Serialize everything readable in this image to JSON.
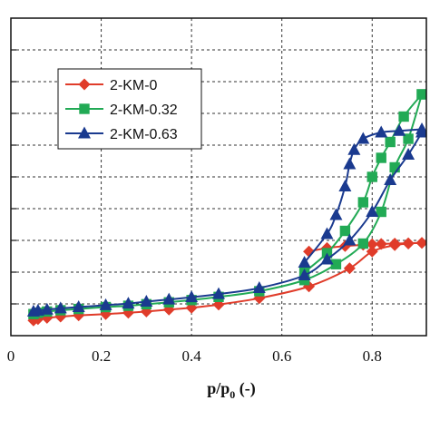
{
  "chart_data": {
    "type": "line",
    "xlabel_main": "p/p",
    "xlabel_sub": "0",
    "xlabel_tail": " (-)",
    "xlim": [
      0,
      0.92
    ],
    "ylim": [
      0,
      1
    ],
    "x_ticks": [
      0,
      0.2,
      0.4,
      0.6,
      0.8
    ],
    "x_tick_labels": [
      "0",
      "0.2",
      "0.4",
      "0.6",
      "0.8"
    ],
    "y_grid": [
      0.1,
      0.2,
      0.3,
      0.4,
      0.5,
      0.6,
      0.7,
      0.8,
      0.9
    ],
    "grid": true,
    "legend_position": "upper-left",
    "series": [
      {
        "name": "2-KM-0",
        "color": "#e03c2a",
        "marker": "diamond",
        "adsorption": {
          "x": [
            0.05,
            0.06,
            0.08,
            0.11,
            0.15,
            0.21,
            0.26,
            0.3,
            0.35,
            0.4,
            0.46,
            0.55,
            0.66,
            0.75,
            0.8,
            0.85,
            0.88,
            0.91
          ],
          "y": [
            0.048,
            0.052,
            0.056,
            0.06,
            0.064,
            0.068,
            0.072,
            0.076,
            0.082,
            0.088,
            0.098,
            0.118,
            0.155,
            0.212,
            0.265,
            0.285,
            0.29,
            0.292
          ]
        },
        "desorption": {
          "x": [
            0.91,
            0.88,
            0.85,
            0.82,
            0.8,
            0.78,
            0.74,
            0.7,
            0.66
          ],
          "y": [
            0.292,
            0.291,
            0.29,
            0.289,
            0.288,
            0.286,
            0.282,
            0.276,
            0.265
          ]
        }
      },
      {
        "name": "2-KM-0.32",
        "color": "#22aa55",
        "marker": "square",
        "adsorption": {
          "x": [
            0.05,
            0.06,
            0.08,
            0.11,
            0.15,
            0.21,
            0.26,
            0.3,
            0.35,
            0.4,
            0.46,
            0.55,
            0.65,
            0.72,
            0.78,
            0.82,
            0.85,
            0.88,
            0.91
          ],
          "y": [
            0.068,
            0.072,
            0.076,
            0.08,
            0.084,
            0.09,
            0.094,
            0.099,
            0.105,
            0.112,
            0.122,
            0.14,
            0.175,
            0.225,
            0.29,
            0.39,
            0.53,
            0.62,
            0.76
          ]
        },
        "desorption": {
          "x": [
            0.91,
            0.87,
            0.84,
            0.82,
            0.8,
            0.78,
            0.74,
            0.7,
            0.65
          ],
          "y": [
            0.76,
            0.69,
            0.61,
            0.56,
            0.5,
            0.42,
            0.33,
            0.26,
            0.2
          ]
        }
      },
      {
        "name": "2-KM-0.63",
        "color": "#1a3a8f",
        "marker": "triangle",
        "adsorption": {
          "x": [
            0.05,
            0.06,
            0.08,
            0.11,
            0.15,
            0.21,
            0.26,
            0.3,
            0.35,
            0.4,
            0.46,
            0.55,
            0.65,
            0.7,
            0.75,
            0.8,
            0.84,
            0.88,
            0.91
          ],
          "y": [
            0.076,
            0.079,
            0.082,
            0.086,
            0.09,
            0.096,
            0.101,
            0.107,
            0.114,
            0.121,
            0.131,
            0.15,
            0.19,
            0.24,
            0.3,
            0.39,
            0.49,
            0.57,
            0.64
          ]
        },
        "desorption": {
          "x": [
            0.91,
            0.86,
            0.82,
            0.78,
            0.76,
            0.75,
            0.74,
            0.72,
            0.7,
            0.65
          ],
          "y": [
            0.65,
            0.645,
            0.64,
            0.62,
            0.585,
            0.54,
            0.47,
            0.38,
            0.32,
            0.23
          ]
        }
      }
    ],
    "legend": {
      "items": [
        "2-KM-0",
        "2-KM-0.32",
        "2-KM-0.63"
      ]
    }
  }
}
